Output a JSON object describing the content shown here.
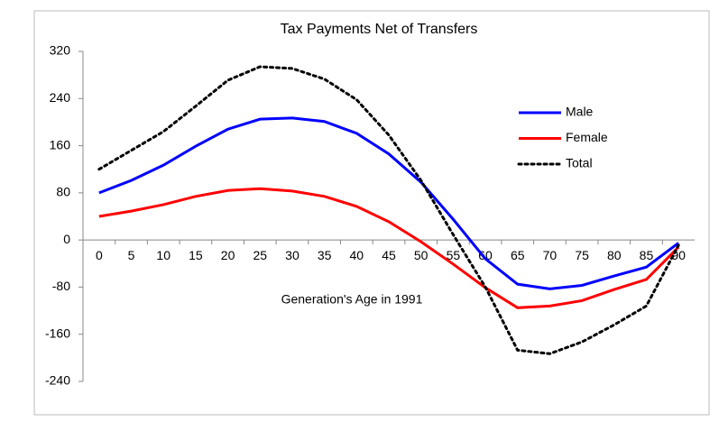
{
  "chart_data": {
    "type": "line",
    "title": "Tax Payments Net of Transfers",
    "x_label": "Generation's Age in 1991",
    "categories": [
      "0",
      "5",
      "10",
      "15",
      "20",
      "25",
      "30",
      "35",
      "40",
      "45",
      "50",
      "55",
      "60",
      "65",
      "70",
      "75",
      "80",
      "85",
      "90"
    ],
    "series": [
      {
        "name": "Male",
        "color": "#0000ff",
        "style": "solid",
        "values": [
          80,
          101,
          127,
          159,
          188,
          205,
          207,
          201,
          181,
          146,
          98,
          35,
          -32,
          -75,
          -83,
          -77,
          -61,
          -46,
          -5
        ]
      },
      {
        "name": "Female",
        "color": "#ff0000",
        "style": "solid",
        "values": [
          40,
          49,
          60,
          74,
          84,
          87,
          83,
          74,
          57,
          31,
          -3,
          -41,
          -81,
          -115,
          -112,
          -103,
          -84,
          -67,
          -12
        ]
      },
      {
        "name": "Total",
        "color": "#000000",
        "style": "dotted",
        "values": [
          120,
          152,
          184,
          227,
          271,
          294,
          291,
          273,
          238,
          178,
          101,
          9,
          -80,
          -187,
          -193,
          -173,
          -144,
          -112,
          -9
        ]
      }
    ],
    "ylim": [
      -240,
      320
    ],
    "yticks": [
      -240,
      -160,
      -80,
      0,
      80,
      160,
      240,
      320
    ],
    "legend": "right"
  }
}
